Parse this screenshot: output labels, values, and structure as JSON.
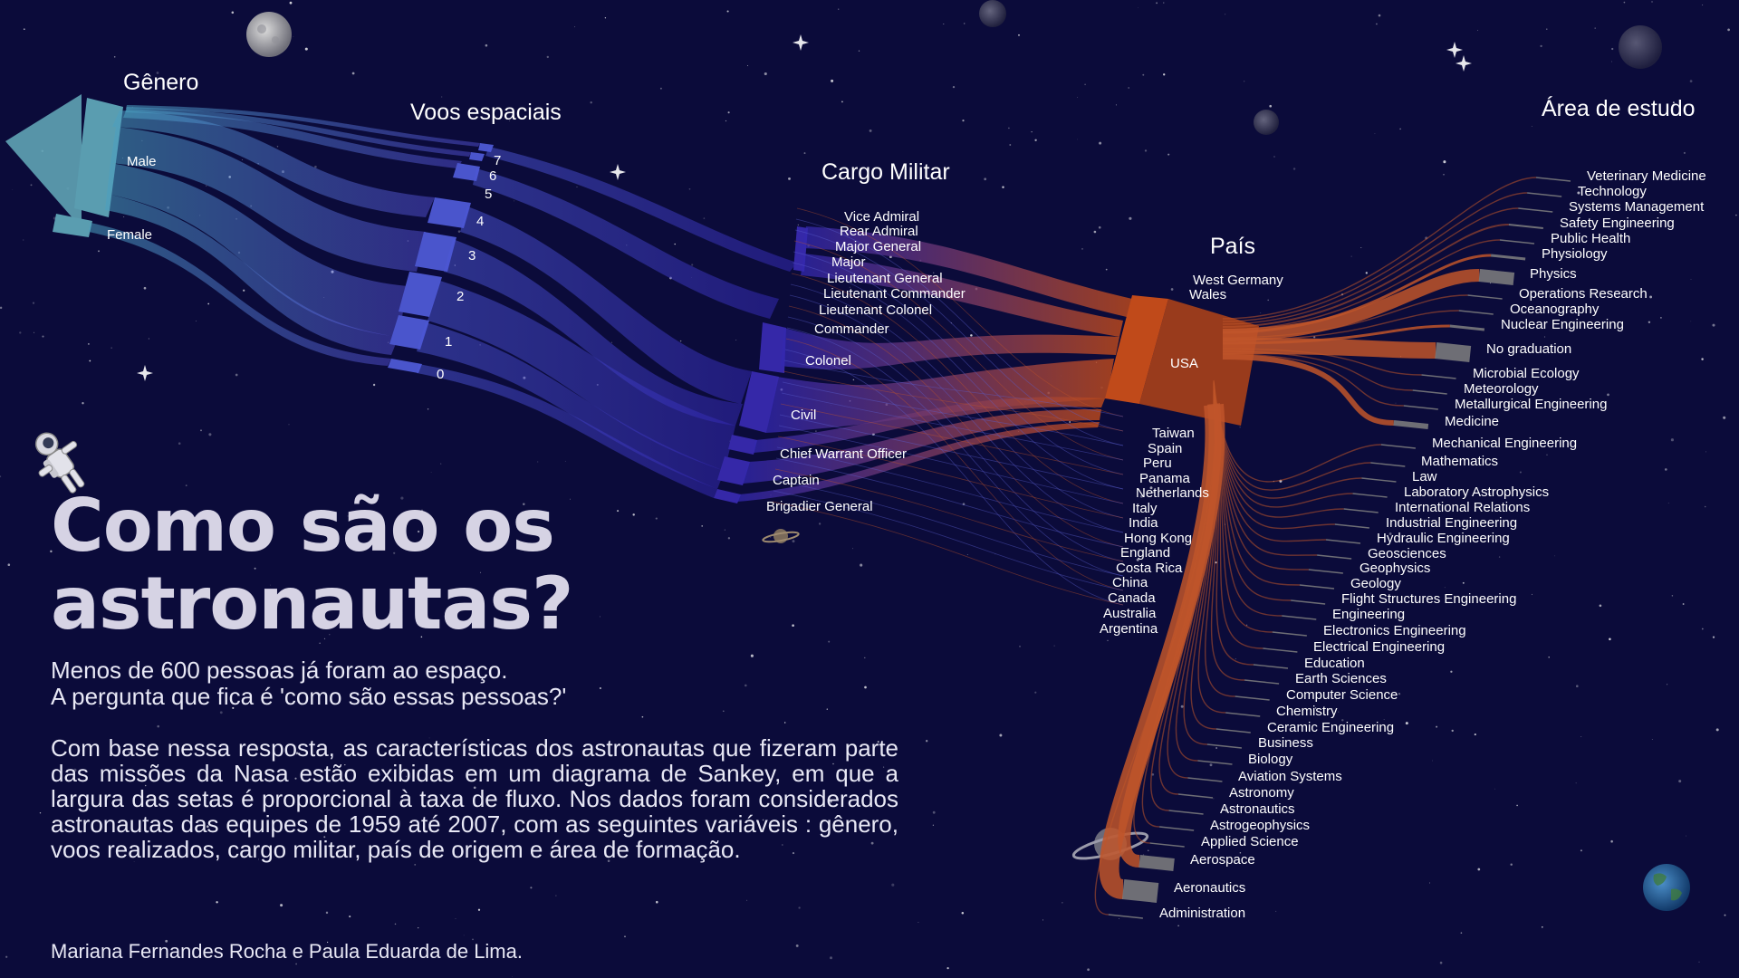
{
  "headers": {
    "genero": "Gênero",
    "voos": "Voos espaciais",
    "cargo": "Cargo Militar",
    "pais": "País",
    "area": "Área de estudo"
  },
  "gender": [
    "Male",
    "Female"
  ],
  "flights": [
    "7",
    "6",
    "5",
    "4",
    "3",
    "2",
    "1",
    "0"
  ],
  "military_rank": [
    "Vice Admiral",
    "Rear Admiral",
    "Major General",
    "Major",
    "Lieutenant General",
    "Lieutenant Commander",
    "Lieutenant Colonel",
    "Commander",
    "Colonel",
    "Civil",
    "Chief Warrant Officer",
    "Captain",
    "Brigadier General"
  ],
  "country_top": [
    "West Germany",
    "Wales"
  ],
  "country_main": "USA",
  "country_bottom": [
    "Taiwan",
    "Spain",
    "Peru",
    "Panama",
    "Netherlands",
    "Italy",
    "India",
    "Hong Kong",
    "England",
    "Costa Rica",
    "China",
    "Canada",
    "Australia",
    "Argentina"
  ],
  "study_area": [
    "Veterinary Medicine",
    "Technology",
    "Systems Management",
    "Safety Engineering",
    "Public Health",
    "Physiology",
    "Physics",
    "Operations Research",
    "Oceanography",
    "Nuclear Engineering",
    "No graduation",
    "Microbial Ecology",
    "Meteorology",
    "Metallurgical Engineering",
    "Medicine",
    "Mechanical Engineering",
    "Mathematics",
    "Law",
    "Laboratory Astrophysics",
    "International Relations",
    "Industrial Engineering",
    "Hydraulic Engineering",
    "Geosciences",
    "Geophysics",
    "Geology",
    "Flight Structures Engineering",
    "Engineering",
    "Electronics Engineering",
    "Electrical Engineering",
    "Education",
    "Earth Sciences",
    "Computer Science",
    "Chemistry",
    "Ceramic Engineering",
    "Business",
    "Biology",
    "Aviation Systems",
    "Astronomy",
    "Astronautics",
    "Astrogeophysics",
    "Applied Science",
    "Aerospace",
    "Aeronautics",
    "Administration"
  ],
  "title": "Como são os astronautas?",
  "intro": [
    "Menos de 600 pessoas já foram ao espaço.",
    "A pergunta que fica é 'como são essas pessoas?'"
  ],
  "body": "Com base nessa resposta, as características dos astronautas que fizeram parte das missões da Nasa estão exibidas em um diagrama de Sankey, em que a largura das setas é proporcional à taxa de fluxo. Nos dados foram considerados astronautas das equipes de 1959 até 2007, com as seguintes variáveis : gênero, voos realizados, cargo militar, país de origem e área de formação.",
  "authors": "Mariana Fernandes Rocha e Paula Eduarda de Lima.",
  "colors": {
    "background": "#0b0b3a",
    "gender": "#5fa3b5",
    "flights": "#4a55cc",
    "rank": "#3528a8",
    "usa": "#b8481c",
    "study": "#c0552a",
    "study_end": "#808080",
    "title": "#d6d3e4"
  },
  "decor_icons": [
    "moon-icon",
    "saturn-icon",
    "earth-icon",
    "astronaut-icon",
    "star-icon"
  ]
}
